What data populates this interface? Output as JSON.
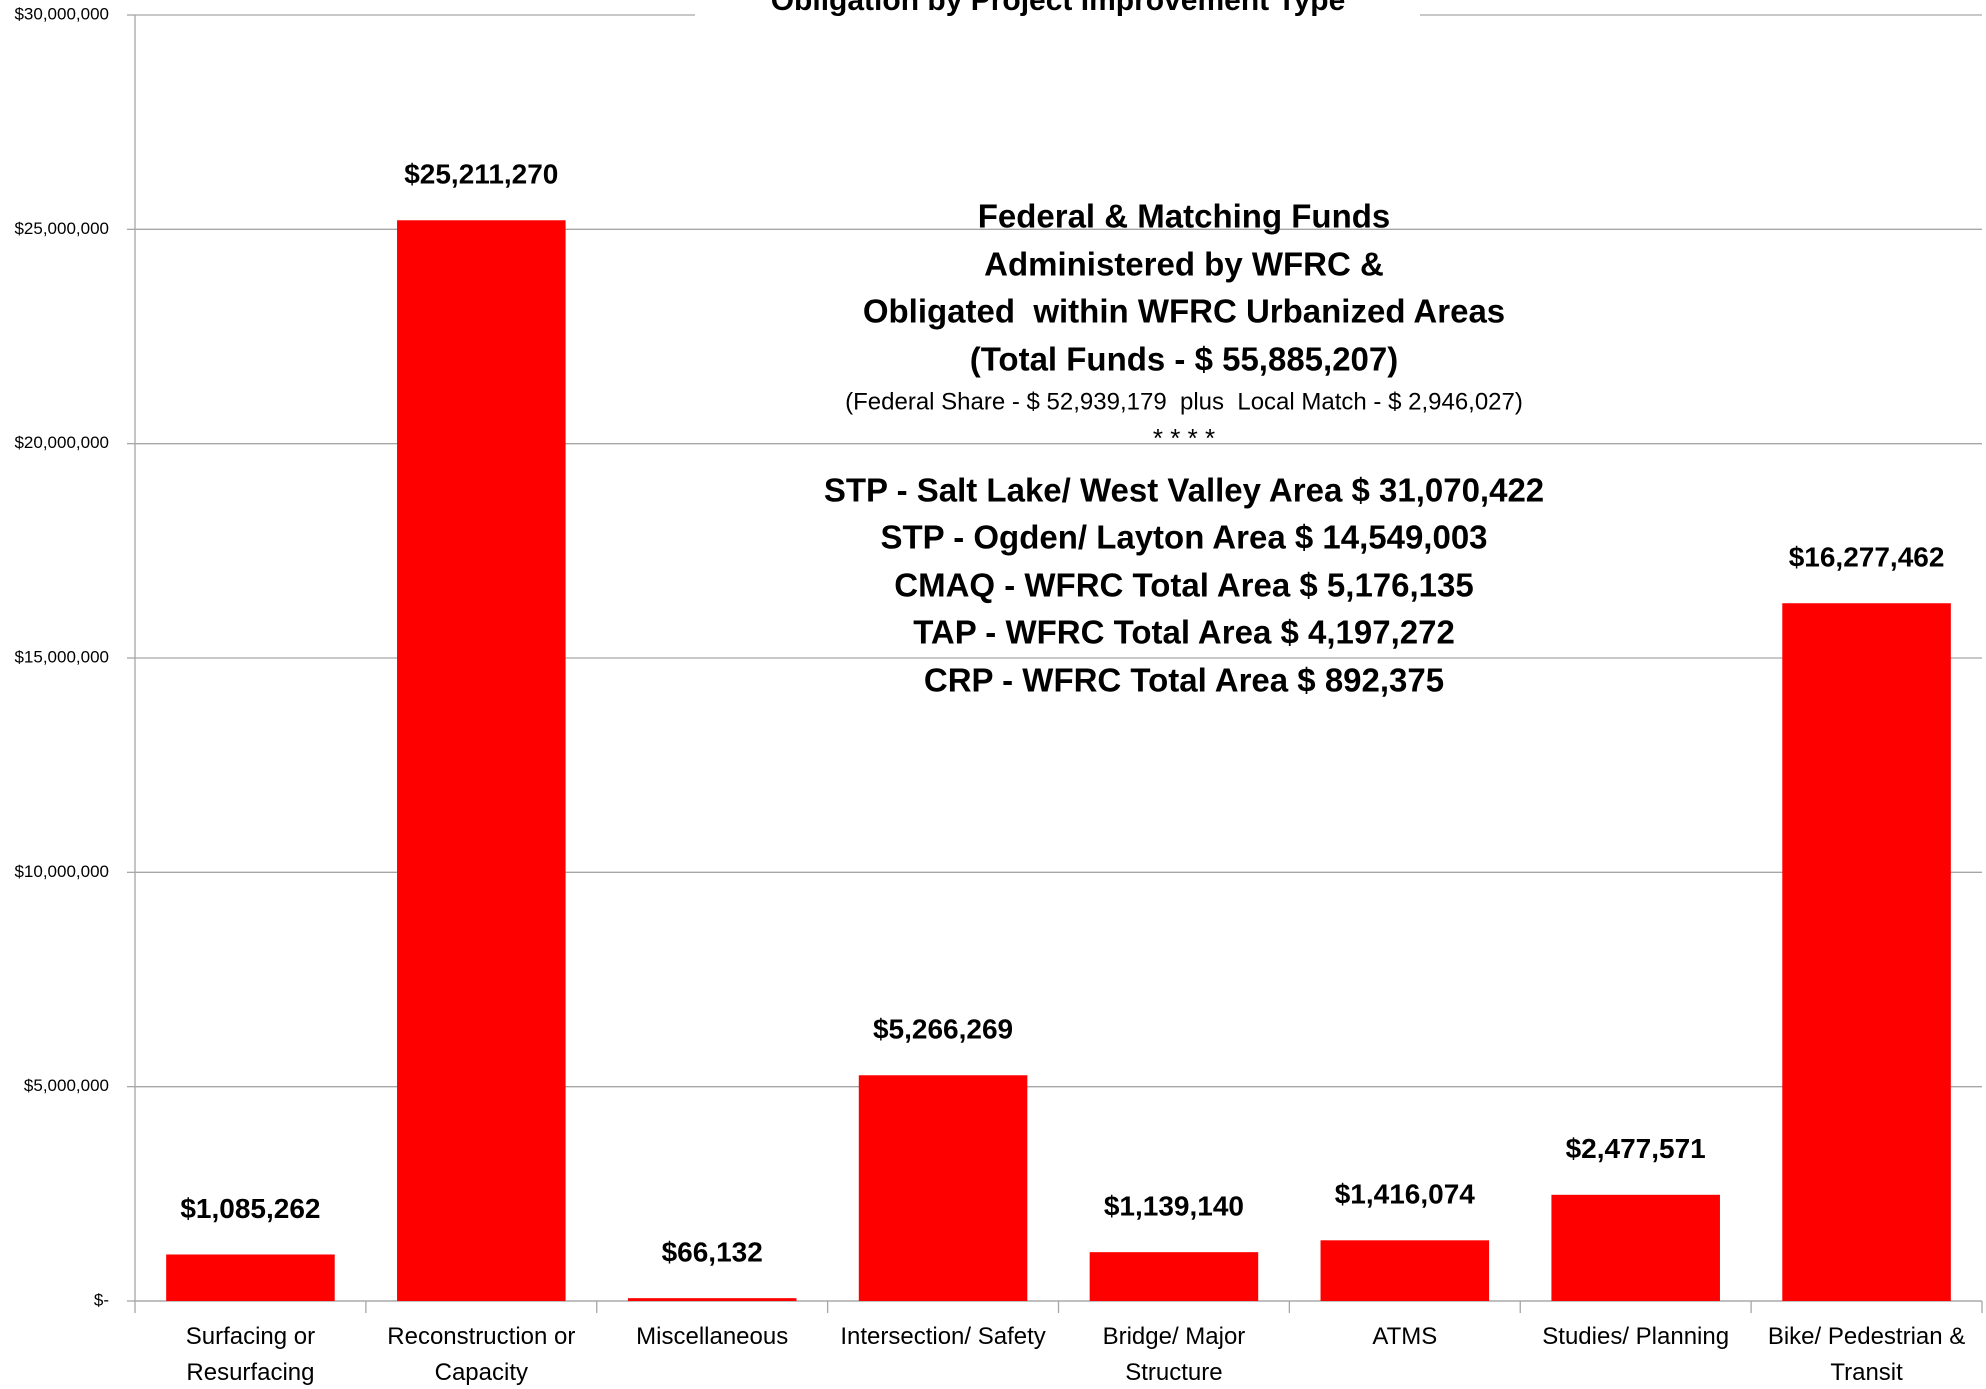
{
  "chart_data": {
    "type": "bar",
    "title": "Obligation by Project Improvement Type",
    "categories": [
      "Surfacing or Resurfacing",
      "Reconstruction or Capacity",
      "Miscellaneous",
      "Intersection/ Safety",
      "Bridge/ Major Structure",
      "ATMS",
      "Studies/ Planning",
      "Bike/ Pedestrian & Transit"
    ],
    "values": [
      1085262,
      25211270,
      66132,
      5266269,
      1139140,
      1416074,
      2477571,
      16277462
    ],
    "value_labels": [
      "$1,085,262",
      "$25,211,270",
      "$66,132",
      "$5,266,269",
      "$1,139,140",
      "$1,416,074",
      "$2,477,571",
      "$16,277,462"
    ],
    "color": "#ff0000",
    "ylim": [
      0,
      30000000
    ],
    "yticks": [
      {
        "value": 0,
        "label": "$-"
      },
      {
        "value": 5000000,
        "label": "$5,000,000"
      },
      {
        "value": 10000000,
        "label": "$10,000,000"
      },
      {
        "value": 15000000,
        "label": "$15,000,000"
      },
      {
        "value": 20000000,
        "label": "$20,000,000"
      },
      {
        "value": 25000000,
        "label": "$25,000,000"
      },
      {
        "value": 30000000,
        "label": "$30,000,000"
      }
    ],
    "grid": true,
    "annotations": [
      "Federal & Matching Funds",
      "Administered by WFRC &",
      "Obligated  within WFRC Urbanized Areas",
      "(Total Funds - $ 55,885,207)",
      "(Federal Share - $ 52,939,179  plus  Local Match - $ 2,946,027)",
      "* * * *",
      "STP - Salt Lake/ West Valley Area $ 31,070,422",
      "STP - Ogden/ Layton Area $ 14,549,003",
      "CMAQ - WFRC Total Area $ 5,176,135",
      "TAP - WFRC Total Area $ 4,197,272",
      "CRP - WFRC Total Area $ 892,375"
    ]
  }
}
